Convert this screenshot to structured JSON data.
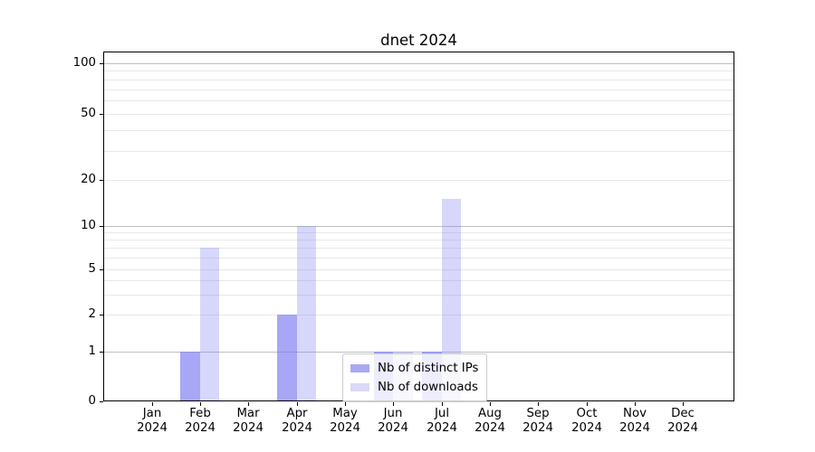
{
  "chart_data": {
    "type": "bar",
    "title": "dnet 2024",
    "categories": [
      "Jan",
      "Feb",
      "Mar",
      "Apr",
      "May",
      "Jun",
      "Jul",
      "Aug",
      "Sep",
      "Oct",
      "Nov",
      "Dec"
    ],
    "x_year_suffix": "2024",
    "series": [
      {
        "name": "Nb of distinct IPs",
        "values": [
          0,
          1,
          0,
          2,
          0,
          1,
          1,
          0,
          0,
          0,
          0,
          0
        ],
        "color": "#a9a9f5",
        "fill": "rgba(122,122,242,0.66)"
      },
      {
        "name": "Nb of downloads",
        "values": [
          0,
          7,
          0,
          10,
          0,
          1,
          15,
          0,
          0,
          0,
          0,
          0
        ],
        "color": "#d9d9f8",
        "fill": "rgba(122,122,242,0.30)"
      }
    ],
    "y_axis": {
      "scale": "symlog",
      "ticks": [
        0,
        1,
        2,
        5,
        10,
        20,
        50,
        100
      ],
      "minor_ticks": [
        3,
        4,
        6,
        7,
        8,
        9,
        30,
        40,
        60,
        70,
        80,
        90
      ],
      "ylim": [
        0,
        110
      ]
    },
    "xlabel": "",
    "ylabel": "",
    "grid": "both",
    "legend": {
      "entries": [
        "Nb of distinct IPs",
        "Nb of downloads"
      ],
      "position": "lower-center"
    }
  },
  "colors": {
    "background": "#ffffff",
    "grid_major": "#c0c0c0",
    "grid_minor": "#e8e8e8",
    "axis": "#000000",
    "text": "#000000",
    "legend_border": "#cccccc",
    "legend_bg": "rgba(255,255,255,0.8)"
  }
}
